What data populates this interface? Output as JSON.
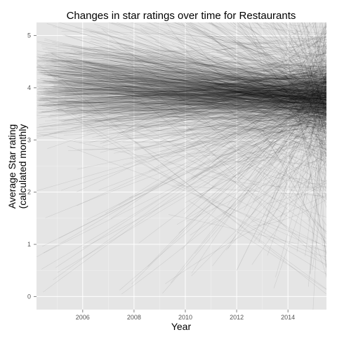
{
  "chart_data": {
    "type": "line",
    "title": "Changes in star ratings over time for Restaurants",
    "xlabel": "Year",
    "ylabel_line1": "Average Star rating",
    "ylabel_line2": "(calculated monthly",
    "xlim": [
      2004.2,
      2015.5
    ],
    "ylim": [
      -0.25,
      5.25
    ],
    "x_ticks": [
      {
        "value": 2006,
        "label": "2006"
      },
      {
        "value": 2008,
        "label": "2008"
      },
      {
        "value": 2010,
        "label": "2010"
      },
      {
        "value": 2012,
        "label": "2012"
      },
      {
        "value": 2014,
        "label": "2014"
      }
    ],
    "y_ticks": [
      {
        "value": 0,
        "label": "0"
      },
      {
        "value": 1,
        "label": "1"
      },
      {
        "value": 2,
        "label": "2"
      },
      {
        "value": 3,
        "label": "3"
      },
      {
        "value": 4,
        "label": "4"
      },
      {
        "value": 5,
        "label": "5"
      }
    ],
    "grid": true,
    "legend": "none",
    "colors": {
      "panel_background": "#e5e5e5",
      "grid": "#ffffff",
      "line": "#000000"
    },
    "series_summary": {
      "description_count": 1400,
      "dense_band_center_2006": 4.1,
      "dense_band_center_2014": 3.8
    },
    "series": [
      {
        "x": [
          2004.5,
          2015.5
        ],
        "y": [
          4.3,
          3.9
        ]
      },
      {
        "x": [
          2004.5,
          2015.5
        ],
        "y": [
          4.0,
          3.7
        ]
      },
      {
        "x": [
          2005.0,
          2015.5
        ],
        "y": [
          3.7,
          3.8
        ]
      },
      {
        "x": [
          2006.0,
          2015.5
        ],
        "y": [
          4.5,
          3.6
        ]
      },
      {
        "x": [
          2007.0,
          2015.5
        ],
        "y": [
          3.5,
          4.1
        ]
      },
      {
        "x": [
          2008.0,
          2015.5
        ],
        "y": [
          2.8,
          3.7
        ]
      },
      {
        "x": [
          2009.0,
          2015.5
        ],
        "y": [
          4.8,
          3.5
        ]
      },
      {
        "x": [
          2010.0,
          2015.5
        ],
        "y": [
          1.5,
          3.8
        ]
      },
      {
        "x": [
          2011.0,
          2015.5
        ],
        "y": [
          5.0,
          2.8
        ]
      },
      {
        "x": [
          2012.0,
          2015.5
        ],
        "y": [
          0.5,
          4.0
        ]
      },
      {
        "x": [
          2013.0,
          2015.5
        ],
        "y": [
          3.2,
          1.0
        ]
      },
      {
        "x": [
          2014.0,
          2015.5
        ],
        "y": [
          4.5,
          0.8
        ]
      }
    ]
  }
}
